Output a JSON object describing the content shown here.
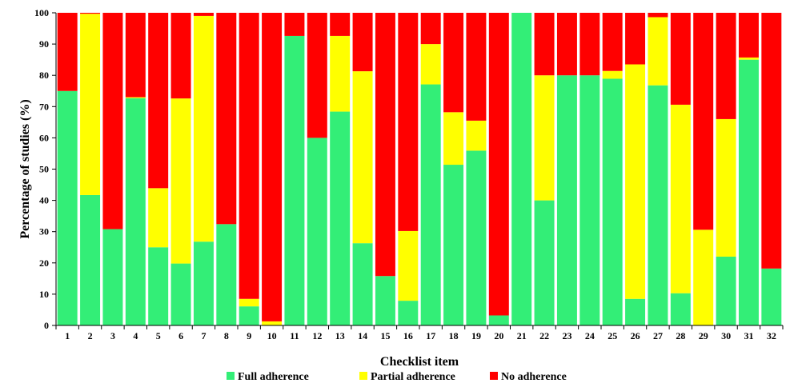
{
  "chart_data": {
    "type": "bar",
    "stacked": true,
    "xlabel": "Checklist item",
    "ylabel": "Percentage of studies (%)",
    "ylim": [
      0,
      100
    ],
    "yticks": [
      0,
      10,
      20,
      30,
      40,
      50,
      60,
      70,
      80,
      90,
      100
    ],
    "grid": false,
    "legend_position": "bottom",
    "categories": [
      "1",
      "2",
      "3",
      "4",
      "5",
      "6",
      "7",
      "8",
      "9",
      "10",
      "11",
      "12",
      "13",
      "14",
      "15",
      "16",
      "17",
      "18",
      "19",
      "20",
      "21",
      "22",
      "23",
      "24",
      "25",
      "26",
      "27",
      "28",
      "29",
      "30",
      "31",
      "32"
    ],
    "series": [
      {
        "name": "Full adherence",
        "color": "#33ee77",
        "values": [
          75,
          41.7,
          30.8,
          72.7,
          25,
          19.8,
          26.8,
          32.4,
          6.1,
          0,
          92.6,
          60,
          68.4,
          26.3,
          15.8,
          7.9,
          77.1,
          51.4,
          55.9,
          3.2,
          100,
          40,
          80,
          80,
          78.9,
          8.5,
          76.8,
          10.3,
          0,
          22,
          85,
          18.2
        ]
      },
      {
        "name": "Partial adherence",
        "color": "#ffff00",
        "values": [
          0,
          58,
          0,
          0.3,
          18.9,
          52.8,
          72.2,
          0,
          2.4,
          1.3,
          0,
          0,
          24.2,
          55,
          0,
          22.3,
          12.9,
          16.8,
          9.6,
          0,
          0,
          40,
          0,
          0,
          2.5,
          75,
          21.8,
          60.3,
          30.6,
          44,
          0.7,
          0
        ]
      },
      {
        "name": "No adherence",
        "color": "#ff0000",
        "values": [
          25,
          0.3,
          69.2,
          27,
          56.1,
          27.4,
          1,
          67.6,
          91.5,
          98.7,
          7.4,
          40,
          7.4,
          18.7,
          84.2,
          69.8,
          10,
          31.8,
          34.5,
          96.8,
          0,
          20,
          20,
          20,
          18.6,
          16.5,
          1.4,
          29.4,
          69.4,
          34,
          14.3,
          81.8
        ]
      }
    ]
  }
}
